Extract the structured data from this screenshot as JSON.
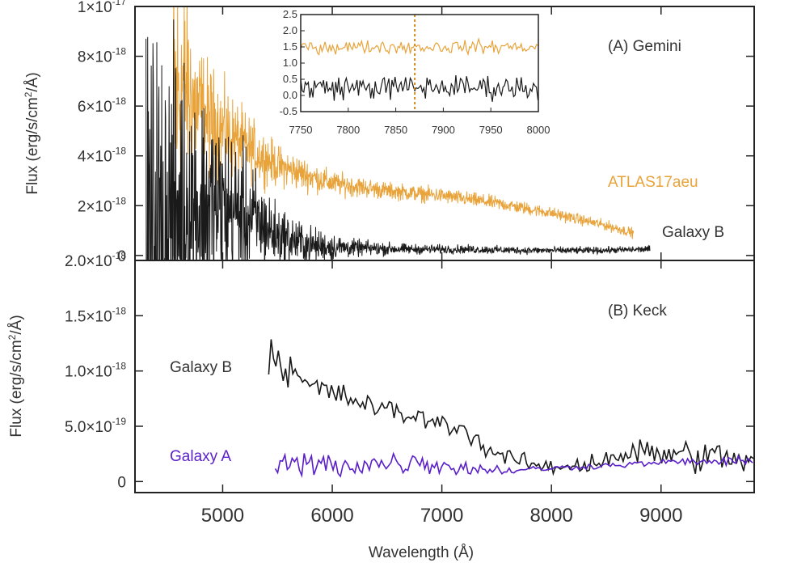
{
  "chart_data": [
    {
      "id": "gemini",
      "type": "line",
      "panel_label": "(A) Gemini",
      "ylabel": "Flux (erg/s/cm²/Å)",
      "ylim": [
        -2e-19,
        1e-17
      ],
      "xlim": [
        4200,
        9850
      ],
      "y_tick_labels": [
        {
          "value": 0,
          "mantissa": "0",
          "exp": ""
        },
        {
          "value": 2e-18,
          "mantissa": "2×10",
          "exp": "-18"
        },
        {
          "value": 4e-18,
          "mantissa": "4×10",
          "exp": "-18"
        },
        {
          "value": 6e-18,
          "mantissa": "6×10",
          "exp": "-18"
        },
        {
          "value": 8e-18,
          "mantissa": "8×10",
          "exp": "-18"
        },
        {
          "value": 1e-17,
          "mantissa": "1×10",
          "exp": "-17"
        }
      ],
      "series": [
        {
          "name": "ATLAS17aeu",
          "color": "#E8A33A",
          "x": [
            4550,
            4650,
            4750,
            4850,
            5000,
            5200,
            5500,
            6000,
            6500,
            7000,
            7500,
            8000,
            8500,
            8750
          ],
          "values": [
            6e-18,
            7e-18,
            6e-18,
            5.5e-18,
            5e-18,
            4.4e-18,
            3.6e-18,
            2.9e-18,
            2.6e-18,
            2.4e-18,
            2.1e-18,
            1.7e-18,
            1.2e-18,
            9e-19
          ],
          "noise": [
            1e-17,
            6e-18,
            4.5e-18,
            3.5e-18,
            2.8e-18,
            2e-18,
            1.2e-18,
            7e-19,
            5e-19,
            4.5e-19,
            4e-19,
            3.5e-19,
            3e-19,
            3e-19
          ]
        },
        {
          "name": "Galaxy B",
          "color": "#1a1a1a",
          "x": [
            4300,
            4500,
            4700,
            4900,
            5100,
            5300,
            5500,
            5800,
            6200,
            6700,
            7200,
            7800,
            8400,
            8900
          ],
          "values": [
            1e-18,
            1.5e-18,
            2e-18,
            2e-18,
            1.8e-18,
            1.4e-18,
            8e-19,
            4e-19,
            3e-19,
            2.5e-19,
            2.5e-19,
            2e-19,
            2e-19,
            2.5e-19
          ],
          "noise": [
            1.2e-17,
            1e-17,
            8e-18,
            6e-18,
            4.5e-18,
            3e-18,
            1.8e-18,
            1.1e-18,
            5e-19,
            3e-19,
            2.5e-19,
            2.2e-19,
            2e-19,
            2e-19
          ]
        }
      ],
      "inset": {
        "xlim": [
          7750,
          8000
        ],
        "ylim": [
          -0.5,
          2.5
        ],
        "x_ticks": [
          7750,
          7800,
          7850,
          7900,
          7950,
          8000
        ],
        "y_ticks": [
          -0.5,
          0.0,
          0.5,
          1.0,
          1.5,
          2.0,
          2.5
        ],
        "x_tick_labels": [
          "7750",
          "7800",
          "7850",
          "7900",
          "7950",
          "8000"
        ],
        "y_tick_labels": [
          "-0.5",
          "0.0",
          "0.5",
          "1.0",
          "1.5",
          "2.0",
          "2.5"
        ],
        "marker_x": 7870,
        "series": [
          {
            "name": "ATLAS17aeu",
            "color": "#E8A33A",
            "level": 1.5,
            "noise": 0.3
          },
          {
            "name": "Galaxy B",
            "color": "#1a1a1a",
            "level": 0.25,
            "noise": 0.55
          }
        ]
      }
    },
    {
      "id": "keck",
      "type": "line",
      "panel_label": "(B) Keck",
      "xlabel": "Wavelength (Å)",
      "ylabel": "Flux (erg/s/cm²/Å)",
      "ylim": [
        -1e-19,
        2e-18
      ],
      "xlim": [
        4200,
        9850
      ],
      "x_ticks": [
        5000,
        6000,
        7000,
        8000,
        9000
      ],
      "x_tick_labels": [
        "5000",
        "6000",
        "7000",
        "8000",
        "9000"
      ],
      "y_tick_labels": [
        {
          "value": 0,
          "mantissa": "0",
          "exp": ""
        },
        {
          "value": 5e-19,
          "mantissa": "5.0×10",
          "exp": "-19"
        },
        {
          "value": 1e-18,
          "mantissa": "1.0×10",
          "exp": "-18"
        },
        {
          "value": 1.5e-18,
          "mantissa": "1.5×10",
          "exp": "-18"
        },
        {
          "value": 2e-18,
          "mantissa": "2.0×10",
          "exp": "-18"
        }
      ],
      "series": [
        {
          "name": "Galaxy B",
          "color": "#1a1a1a",
          "x": [
            5420,
            5500,
            5700,
            6000,
            6300,
            6600,
            6900,
            7200,
            7400,
            7700,
            8000,
            8300,
            8600,
            8900,
            9200,
            9500,
            9850
          ],
          "values": [
            1.1e-18,
            1.15e-18,
            9e-19,
            8e-19,
            7e-19,
            6.2e-19,
            5.5e-19,
            4.8e-19,
            3e-19,
            1.8e-19,
            1.2e-19,
            1.6e-19,
            2.4e-19,
            2.6e-19,
            2.4e-19,
            2.2e-19,
            1.8e-19
          ],
          "noise": [
            4e-19,
            3e-19,
            2e-19,
            1.6e-19,
            1.5e-19,
            1.4e-19,
            1.3e-19,
            1.3e-19,
            1.4e-19,
            1.2e-19,
            8e-20,
            1.6e-19,
            2e-19,
            2e-19,
            2.2e-19,
            2.2e-19,
            1.6e-19
          ]
        },
        {
          "name": "Galaxy A",
          "color": "#5a1fc9",
          "x": [
            5480,
            5700,
            6000,
            6400,
            6800,
            7200,
            7600,
            8000,
            8400,
            8800,
            9200,
            9600,
            9850
          ],
          "values": [
            1.3e-19,
            1.5e-19,
            1.5e-19,
            1.6e-19,
            1.8e-19,
            1.2e-19,
            1e-19,
            1.2e-19,
            1.4e-19,
            1.6e-19,
            1.8e-19,
            1.8e-19,
            1.8e-19
          ],
          "noise": [
            2.2e-19,
            2e-19,
            1.8e-19,
            1.6e-19,
            1.6e-19,
            1e-19,
            6e-20,
            4e-20,
            4e-20,
            4e-20,
            5e-20,
            6e-20,
            6e-20
          ]
        }
      ]
    }
  ],
  "annotations": {
    "gemini_label": "(A) Gemini",
    "atlas_label": "ATLAS17aeu",
    "galaxy_b_top_label": "Galaxy B",
    "keck_label": "(B) Keck",
    "galaxy_b_bottom_label": "Galaxy B",
    "galaxy_a_label": "Galaxy A",
    "ylabel_text": "Flux (erg/s/cm",
    "ylabel_sup": "2",
    "ylabel_tail": "/Å)",
    "xlabel": "Wavelength (Å)"
  },
  "colors": {
    "atlas": "#E8A33A",
    "galaxy_b": "#1a1a1a",
    "galaxy_a": "#5a1fc9"
  }
}
